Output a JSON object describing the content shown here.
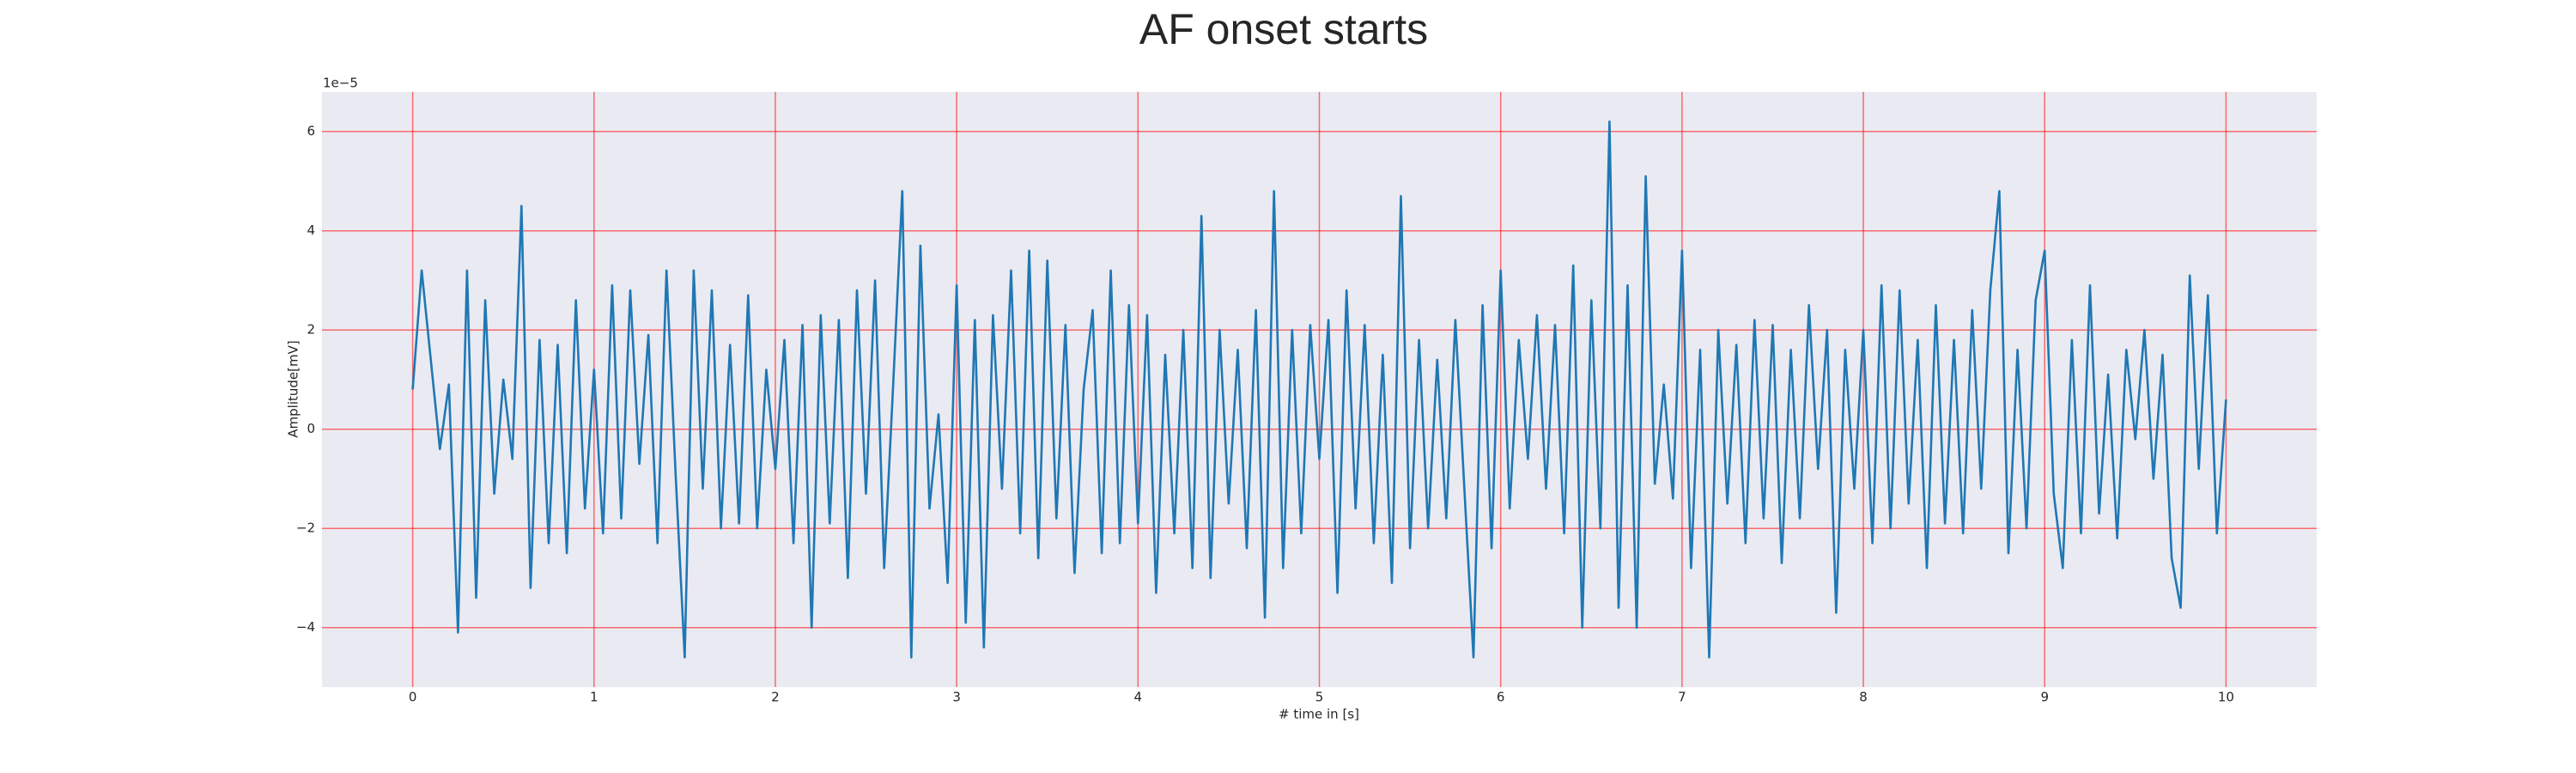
{
  "chart_data": {
    "type": "line",
    "title": "AF onset starts",
    "xlabel": "# time in [s]",
    "ylabel": "Amplitude[mV]",
    "offset_label": "1e−5",
    "color": "#1f77b4",
    "grid": true,
    "grid_color": "#ff0000",
    "background": "#eaeaf2",
    "xlim": [
      -0.5,
      10.5
    ],
    "xticks": [
      0,
      1,
      2,
      3,
      4,
      5,
      6,
      7,
      8,
      9,
      10
    ],
    "ylim": [
      -5.2,
      6.8
    ],
    "yticks": [
      {
        "value": -4,
        "label": "−4"
      },
      {
        "value": -2,
        "label": "−2"
      },
      0,
      2,
      4,
      6
    ],
    "x": [
      0,
      0.05,
      0.1,
      0.15,
      0.2,
      0.25,
      0.3,
      0.35,
      0.4,
      0.45,
      0.5,
      0.55,
      0.6,
      0.65,
      0.7,
      0.75,
      0.8,
      0.85,
      0.9,
      0.95,
      1,
      1.05,
      1.1,
      1.15,
      1.2,
      1.25,
      1.3,
      1.35,
      1.4,
      1.45,
      1.5,
      1.55,
      1.6,
      1.65,
      1.7,
      1.75,
      1.8,
      1.85,
      1.9,
      1.95,
      2,
      2.05,
      2.1,
      2.15,
      2.2,
      2.25,
      2.3,
      2.35,
      2.4,
      2.45,
      2.5,
      2.55,
      2.6,
      2.65,
      2.7,
      2.75,
      2.8,
      2.85,
      2.9,
      2.95,
      3,
      3.05,
      3.1,
      3.15,
      3.2,
      3.25,
      3.3,
      3.35,
      3.4,
      3.45,
      3.5,
      3.55,
      3.6,
      3.65,
      3.7,
      3.75,
      3.8,
      3.85,
      3.9,
      3.95,
      4,
      4.05,
      4.1,
      4.15,
      4.2,
      4.25,
      4.3,
      4.35,
      4.4,
      4.45,
      4.5,
      4.55,
      4.6,
      4.65,
      4.7,
      4.75,
      4.8,
      4.85,
      4.9,
      4.95,
      5,
      5.05,
      5.1,
      5.15,
      5.2,
      5.25,
      5.3,
      5.35,
      5.4,
      5.45,
      5.5,
      5.55,
      5.6,
      5.65,
      5.7,
      5.75,
      5.8,
      5.85,
      5.9,
      5.95,
      6,
      6.05,
      6.1,
      6.15,
      6.2,
      6.25,
      6.3,
      6.35,
      6.4,
      6.45,
      6.5,
      6.55,
      6.6,
      6.65,
      6.7,
      6.75,
      6.8,
      6.85,
      6.9,
      6.95,
      7,
      7.05,
      7.1,
      7.15,
      7.2,
      7.25,
      7.3,
      7.35,
      7.4,
      7.45,
      7.5,
      7.55,
      7.6,
      7.65,
      7.7,
      7.75,
      7.8,
      7.85,
      7.9,
      7.95,
      8,
      8.05,
      8.1,
      8.15,
      8.2,
      8.25,
      8.3,
      8.35,
      8.4,
      8.45,
      8.5,
      8.55,
      8.6,
      8.65,
      8.7,
      8.75,
      8.8,
      8.85,
      8.9,
      8.95,
      9,
      9.05,
      9.1,
      9.15,
      9.2,
      9.25,
      9.3,
      9.35,
      9.4,
      9.45,
      9.5,
      9.55,
      9.6,
      9.65,
      9.7,
      9.75,
      9.8,
      9.85,
      9.9,
      9.95,
      10
    ],
    "values": [
      0.8,
      3.2,
      1.4,
      -0.4,
      0.9,
      -4.1,
      3.2,
      -3.4,
      2.6,
      -1.3,
      1.0,
      -0.6,
      4.5,
      -3.2,
      1.8,
      -2.3,
      1.7,
      -2.5,
      2.6,
      -1.6,
      1.2,
      -2.1,
      2.9,
      -1.8,
      2.8,
      -0.7,
      1.9,
      -2.3,
      3.2,
      -0.9,
      -4.6,
      3.2,
      -1.2,
      2.8,
      -2.0,
      1.7,
      -1.9,
      2.7,
      -2.0,
      1.2,
      -0.8,
      1.8,
      -2.3,
      2.1,
      -4.0,
      2.3,
      -1.9,
      2.2,
      -3.0,
      2.8,
      -1.3,
      3.0,
      -2.8,
      0.9,
      4.8,
      -4.6,
      3.7,
      -1.6,
      0.3,
      -3.1,
      2.9,
      -3.9,
      2.2,
      -4.4,
      2.3,
      -1.2,
      3.2,
      -2.1,
      3.6,
      -2.6,
      3.4,
      -1.8,
      2.1,
      -2.9,
      0.8,
      2.4,
      -2.5,
      3.2,
      -2.3,
      2.5,
      -1.9,
      2.3,
      -3.3,
      1.5,
      -2.1,
      2.0,
      -2.8,
      4.3,
      -3.0,
      2.0,
      -1.5,
      1.6,
      -2.4,
      2.4,
      -3.8,
      4.8,
      -2.8,
      2.0,
      -2.1,
      2.1,
      -0.6,
      2.2,
      -3.3,
      2.8,
      -1.6,
      2.1,
      -2.3,
      1.5,
      -3.1,
      4.7,
      -2.4,
      1.8,
      -2.0,
      1.4,
      -1.8,
      2.2,
      -1.2,
      -4.6,
      2.5,
      -2.4,
      3.2,
      -1.6,
      1.8,
      -0.6,
      2.3,
      -1.2,
      2.1,
      -2.1,
      3.3,
      -4.0,
      2.6,
      -2.0,
      6.2,
      -3.6,
      2.9,
      -4.0,
      5.1,
      -1.1,
      0.9,
      -1.4,
      3.6,
      -2.8,
      1.6,
      -4.6,
      2.0,
      -1.5,
      1.7,
      -2.3,
      2.2,
      -1.8,
      2.1,
      -2.7,
      1.6,
      -1.8,
      2.5,
      -0.8,
      2.0,
      -3.7,
      1.6,
      -1.2,
      2.0,
      -2.3,
      2.9,
      -2.0,
      2.8,
      -1.5,
      1.8,
      -2.8,
      2.5,
      -1.9,
      1.8,
      -2.1,
      2.4,
      -1.2,
      2.8,
      4.8,
      -2.5,
      1.6,
      -2.0,
      2.6,
      3.6,
      -1.3,
      -2.8,
      1.8,
      -2.1,
      2.9,
      -1.7,
      1.1,
      -2.2,
      1.6,
      -0.2,
      2.0,
      -1.0,
      1.5,
      -2.6,
      -3.6,
      3.1,
      -0.8,
      2.7,
      -2.1,
      0.6
    ]
  }
}
